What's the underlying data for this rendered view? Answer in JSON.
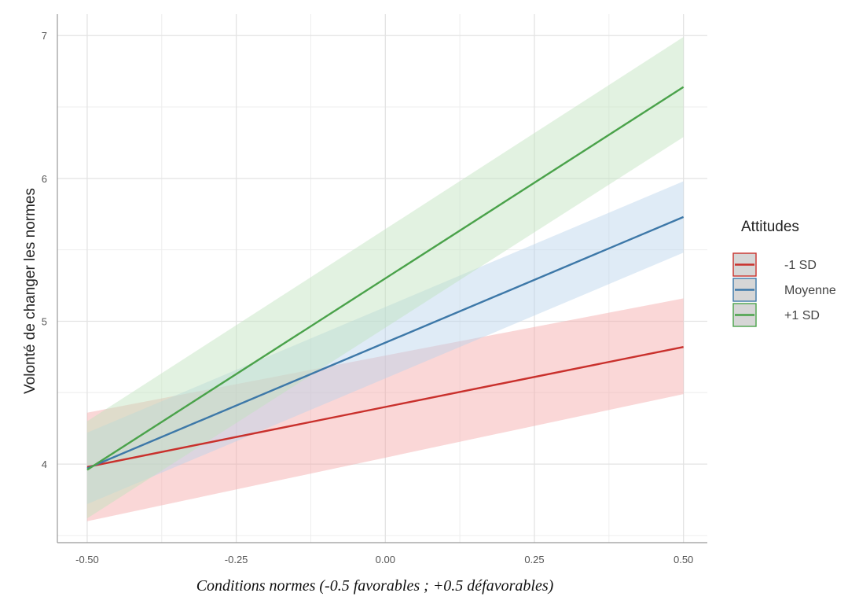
{
  "chart_data": {
    "type": "line",
    "title": "",
    "xlabel": "Conditions normes (-0.5 favorables ; +0.5 défavorables)",
    "ylabel": "Volonté de changer les normes",
    "xlim": [
      -0.55,
      0.54
    ],
    "ylim": [
      3.45,
      7.15
    ],
    "x_ticks": [
      -0.5,
      -0.25,
      0.0,
      0.25,
      0.5
    ],
    "x_tick_labels": [
      "-0.50",
      "-0.25",
      "0.00",
      "0.25",
      "0.50"
    ],
    "y_ticks": [
      4,
      5,
      6,
      7
    ],
    "y_tick_labels": [
      "4",
      "5",
      "6",
      "7"
    ],
    "grid": true,
    "legend_title": "Attitudes",
    "legend_position": "right",
    "series": [
      {
        "name": "-1 SD",
        "color": "#c9302c",
        "band_color": "#f4a6a6",
        "x": [
          -0.5,
          0.5
        ],
        "y": [
          3.98,
          4.82
        ],
        "ci_lower": [
          3.6,
          4.49
        ],
        "ci_upper": [
          4.36,
          5.16
        ]
      },
      {
        "name": "Moyenne",
        "color": "#3d78a8",
        "band_color": "#b9d3ea",
        "x": [
          -0.5,
          0.5
        ],
        "y": [
          3.97,
          5.73
        ],
        "ci_lower": [
          3.72,
          5.48
        ],
        "ci_upper": [
          4.22,
          5.98
        ]
      },
      {
        "name": "+1 SD",
        "color": "#4aa24a",
        "band_color": "#bfe3bd",
        "x": [
          -0.5,
          0.5
        ],
        "y": [
          3.96,
          6.64
        ],
        "ci_lower": [
          3.62,
          6.29
        ],
        "ci_upper": [
          4.3,
          6.99
        ]
      }
    ]
  }
}
